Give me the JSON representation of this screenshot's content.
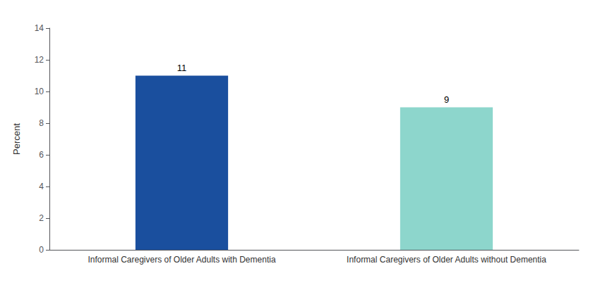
{
  "chart_data": {
    "type": "bar",
    "categories": [
      "Informal Caregivers of Older Adults with Dementia",
      "Informal Caregivers of Older Adults without Dementia"
    ],
    "values": [
      11,
      9
    ],
    "colors": [
      "#1a4f9e",
      "#8dd6cc"
    ],
    "ylabel": "Percent",
    "ylim": [
      0,
      14
    ],
    "yticks": [
      0,
      2,
      4,
      6,
      8,
      10,
      12,
      14
    ],
    "grid": false,
    "data_labels": true
  }
}
